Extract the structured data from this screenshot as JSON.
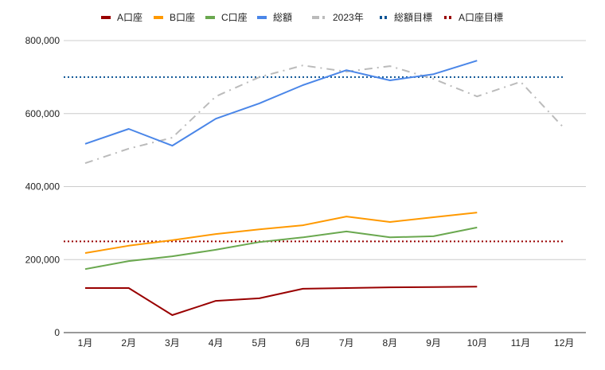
{
  "chart_data": {
    "type": "line",
    "title": "",
    "xlabel": "",
    "ylabel": "",
    "ylim": [
      0,
      800000
    ],
    "yticks": [
      0,
      200000,
      400000,
      600000,
      800000
    ],
    "ytick_labels": [
      "0",
      "200,000",
      "400,000",
      "600,000",
      "800,000"
    ],
    "grid": true,
    "legend_position": "top",
    "categories": [
      "1月",
      "2月",
      "3月",
      "4月",
      "5月",
      "6月",
      "7月",
      "8月",
      "9月",
      "10月",
      "11月",
      "12月"
    ],
    "series": [
      {
        "name": "A口座",
        "color": "#990000",
        "style": "solid",
        "values": [
          122000,
          122000,
          48000,
          87000,
          94000,
          120000,
          122000,
          124000,
          125000,
          126000,
          null,
          null
        ]
      },
      {
        "name": "B口座",
        "color": "#ff9900",
        "style": "solid",
        "values": [
          218000,
          238000,
          253000,
          270000,
          283000,
          294000,
          318000,
          303000,
          316000,
          329000,
          null,
          null
        ]
      },
      {
        "name": "C口座",
        "color": "#6aa84f",
        "style": "solid",
        "values": [
          174000,
          196000,
          209000,
          227000,
          248000,
          261000,
          277000,
          261000,
          264000,
          288000,
          null,
          null
        ]
      },
      {
        "name": "総額",
        "color": "#4a86e8",
        "style": "solid",
        "values": [
          517000,
          558000,
          512000,
          586000,
          628000,
          678000,
          719000,
          691000,
          708000,
          745000,
          null,
          null
        ]
      },
      {
        "name": "2023年",
        "color": "#bbbbbb",
        "style": "dashdot",
        "values": [
          464000,
          504000,
          534000,
          647000,
          700000,
          732000,
          715000,
          730000,
          695000,
          647000,
          687000,
          560000
        ]
      },
      {
        "name": "総額目標",
        "color": "#0b5394",
        "style": "dotted",
        "values": [
          700000,
          700000,
          700000,
          700000,
          700000,
          700000,
          700000,
          700000,
          700000,
          700000,
          700000,
          700000
        ]
      },
      {
        "name": "A口座目標",
        "color": "#990000",
        "style": "dotted",
        "values": [
          250000,
          250000,
          250000,
          250000,
          250000,
          250000,
          250000,
          250000,
          250000,
          250000,
          250000,
          250000
        ]
      }
    ]
  }
}
